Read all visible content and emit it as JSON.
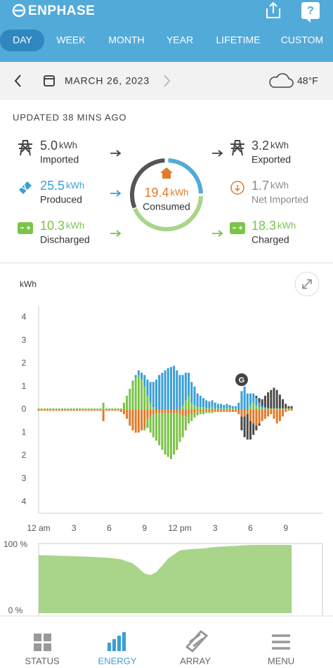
{
  "header": {
    "brand": "ENPHASE",
    "help": "?"
  },
  "tabs": [
    "DAY",
    "WEEK",
    "MONTH",
    "YEAR",
    "LIFETIME",
    "CUSTOM"
  ],
  "date_bar": {
    "date": "MARCH 26, 2023",
    "temperature": "48°F"
  },
  "summary": {
    "updated": "UPDATED 38 MINS AGO",
    "items": [
      {
        "value": "5.0",
        "unit": "kWh",
        "label": "Imported",
        "color": "#444444"
      },
      {
        "value": "25.5",
        "unit": "kWh",
        "label": "Produced",
        "color": "#3a9fd6"
      },
      {
        "value": "10.3",
        "unit": "kWh",
        "label": "Discharged",
        "color": "#7cc34a"
      },
      {
        "value": "3.2",
        "unit": "kWh",
        "label": "Exported",
        "color": "#444444"
      },
      {
        "value": "1.7",
        "unit": "kWh",
        "label": "Net Imported",
        "color": "#8a8a8a"
      },
      {
        "value": "18.3",
        "unit": "kWh",
        "label": "Charged",
        "color": "#7cc34a"
      }
    ],
    "center": {
      "value": "19.4",
      "unit": "kWh",
      "label": "Consumed",
      "color": "#e07b2a"
    }
  },
  "nav": [
    "STATUS",
    "ENERGY",
    "ARRAY",
    "MENU"
  ],
  "chart_data": [
    {
      "type": "bar",
      "stacked": true,
      "y_label": "kWh",
      "annotation": "G",
      "x": [
        0,
        0.25,
        0.5,
        0.75,
        1,
        1.25,
        1.5,
        1.75,
        2,
        2.25,
        2.5,
        2.75,
        3,
        3.25,
        3.5,
        3.75,
        4,
        4.25,
        4.5,
        4.75,
        5,
        5.25,
        5.5,
        5.75,
        6,
        6.25,
        6.5,
        6.75,
        7,
        7.25,
        7.5,
        7.75,
        8,
        8.25,
        8.5,
        8.75,
        9,
        9.25,
        9.5,
        9.75,
        10,
        10.25,
        10.5,
        10.75,
        11,
        11.25,
        11.5,
        11.75,
        12,
        12.25,
        12.5,
        12.75,
        13,
        13.25,
        13.5,
        13.75,
        14,
        14.25,
        14.5,
        14.75,
        15,
        15.25,
        15.5,
        15.75,
        16,
        16.25,
        16.5,
        16.75,
        17,
        17.25,
        17.5,
        17.75,
        18,
        18.25,
        18.5,
        18.75,
        19,
        19.25,
        19.5,
        19.75,
        20,
        20.25,
        20.5,
        20.75,
        21,
        21.25,
        21.5
      ],
      "series": [
        {
          "name": "Discharged",
          "color": "#7cc34a",
          "values": [
            0.05,
            0.05,
            0.05,
            0.05,
            0.05,
            0.05,
            0.05,
            0.05,
            0.05,
            0.05,
            0.05,
            0.05,
            0.05,
            0.05,
            0.05,
            0.05,
            0.05,
            0.05,
            0.05,
            0.05,
            0.05,
            0.05,
            0.3,
            0.05,
            0.05,
            0.05,
            0.05,
            0.05,
            0.05,
            0.3,
            0.6,
            0.9,
            1.2,
            1.4,
            1.5,
            1.3,
            1,
            0.6,
            0.3,
            0.1,
            0,
            0,
            0,
            0,
            0,
            0,
            0,
            0,
            0,
            0.2,
            0.4,
            0.6,
            0.3,
            0.2,
            0.1,
            0.1,
            0.1,
            0.05,
            0.05,
            0.1,
            0.05,
            0.05,
            0.05,
            0.05,
            0.05,
            0.05,
            0.05,
            0.05,
            0,
            0,
            0,
            0,
            0.2,
            0.3,
            0.2,
            0.1,
            0.05,
            0.05,
            0.05,
            0.05,
            0.05,
            0.05,
            0.05,
            0.05,
            0.05,
            0.05,
            0.05
          ]
        },
        {
          "name": "Produced",
          "color": "#3a9fd6",
          "values": [
            0,
            0,
            0,
            0,
            0,
            0,
            0,
            0,
            0,
            0,
            0,
            0,
            0,
            0,
            0,
            0,
            0,
            0,
            0,
            0,
            0,
            0,
            0,
            0,
            0,
            0,
            0,
            0,
            0,
            0,
            0,
            0,
            0.05,
            0.1,
            0.2,
            0.3,
            0.5,
            0.7,
            0.9,
            1.1,
            1.3,
            1.5,
            1.6,
            1.7,
            1.8,
            1.85,
            1.9,
            1.7,
            1.5,
            1.3,
            1.2,
            1,
            0.9,
            0.8,
            0.6,
            0.5,
            0.4,
            0.35,
            0.3,
            0.3,
            0.25,
            0.2,
            0.2,
            0.15,
            0.2,
            0.15,
            0.1,
            0.1,
            0.3,
            0.8,
            1,
            0.7,
            0.5,
            0.4,
            0.3,
            0.2,
            0.1,
            0.05,
            0,
            0,
            0,
            0,
            0,
            0,
            0,
            0,
            0
          ]
        },
        {
          "name": "Imported",
          "color": "#4a4a4a",
          "values": [
            0,
            0,
            0,
            0,
            0,
            0,
            0,
            0,
            0,
            0,
            0,
            0,
            0,
            0,
            0,
            0,
            0,
            0,
            0,
            0,
            0,
            0,
            0,
            0,
            0,
            0,
            0,
            0,
            0,
            0,
            0,
            0,
            0,
            0,
            0,
            0,
            0,
            0,
            0,
            0,
            0,
            0,
            0,
            0,
            0,
            0,
            0,
            0,
            0,
            0,
            0,
            0,
            0,
            0,
            0,
            0,
            0,
            0,
            0,
            0,
            0,
            0,
            0,
            0,
            0,
            0,
            0,
            0,
            0,
            0,
            0,
            0,
            0,
            0,
            0.1,
            0.2,
            0.3,
            0.5,
            0.7,
            0.8,
            0.9,
            0.8,
            0.6,
            0.4,
            0.2,
            0.1,
            0.1
          ]
        },
        {
          "name": "Consumed",
          "color": "#e07b2a",
          "values": [
            -0.05,
            -0.05,
            -0.05,
            -0.05,
            -0.05,
            -0.05,
            -0.05,
            -0.05,
            -0.05,
            -0.05,
            -0.05,
            -0.05,
            -0.05,
            -0.05,
            -0.05,
            -0.05,
            -0.05,
            -0.05,
            -0.05,
            -0.05,
            -0.05,
            -0.05,
            -0.5,
            -0.05,
            -0.05,
            -0.05,
            -0.05,
            -0.05,
            -0.1,
            -0.2,
            -0.4,
            -0.7,
            -0.9,
            -1,
            -1,
            -0.9,
            -0.8,
            -0.4,
            -0.3,
            -0.2,
            -0.15,
            -0.15,
            -0.15,
            -0.15,
            -0.15,
            -0.15,
            -0.15,
            -0.15,
            -0.2,
            -0.3,
            -0.3,
            -0.2,
            -0.2,
            -0.15,
            -0.1,
            -0.1,
            -0.1,
            -0.1,
            -0.1,
            -0.1,
            -0.1,
            -0.1,
            -0.1,
            -0.1,
            -0.1,
            -0.1,
            -0.1,
            -0.1,
            -0.2,
            -0.3,
            -0.3,
            -0.2,
            -0.5,
            -0.6,
            -0.7,
            -0.6,
            -0.5,
            -0.4,
            -0.3,
            -0.2,
            -0.4,
            -0.6,
            -0.5,
            -0.3,
            -0.1,
            -0.05,
            -0.05
          ]
        },
        {
          "name": "Charged",
          "color": "#7cc34a",
          "values": [
            0,
            0,
            0,
            0,
            0,
            0,
            0,
            0,
            0,
            0,
            0,
            0,
            0,
            0,
            0,
            0,
            0,
            0,
            0,
            0,
            0,
            0,
            0,
            0,
            0,
            0,
            0,
            0,
            0,
            0,
            0,
            0,
            0,
            0,
            0,
            0,
            -0.1,
            -0.4,
            -0.7,
            -1,
            -1.2,
            -1.4,
            -1.6,
            -1.8,
            -1.9,
            -2,
            -1.8,
            -1.6,
            -1.2,
            -0.9,
            -0.6,
            -0.4,
            -0.3,
            -0.2,
            -0.15,
            -0.1,
            -0.1,
            -0.05,
            -0.05,
            -0.05,
            0,
            0,
            0,
            0,
            0,
            0,
            0,
            0,
            0,
            0,
            0,
            0,
            0,
            0,
            0,
            0,
            0,
            0,
            0,
            0,
            0,
            0,
            0,
            0,
            0,
            0,
            0
          ]
        },
        {
          "name": "Exported",
          "color": "#4a4a4a",
          "values": [
            0,
            0,
            0,
            0,
            0,
            0,
            0,
            0,
            0,
            0,
            0,
            0,
            0,
            0,
            0,
            0,
            0,
            0,
            0,
            0,
            0,
            0,
            0,
            0,
            0,
            0,
            0,
            0,
            0,
            0,
            0,
            0,
            0,
            0,
            0,
            0,
            0,
            0,
            0,
            0,
            0,
            0,
            0,
            0,
            0,
            0,
            0,
            0,
            0,
            0,
            0,
            0,
            0,
            0,
            0,
            0,
            0,
            0,
            0,
            0,
            0,
            0,
            0,
            0,
            0,
            0,
            0,
            0,
            0,
            -0.6,
            -0.9,
            -1.1,
            -0.8,
            -0.5,
            -0.2,
            -0.1,
            0,
            0,
            0,
            0,
            0,
            0,
            0,
            0,
            0,
            0,
            0
          ]
        }
      ],
      "xlim": [
        0,
        24
      ],
      "ylim": [
        -4.5,
        4.5
      ],
      "xticks": [
        {
          "value": 0,
          "label": "12 am"
        },
        3,
        6,
        9,
        {
          "value": 12,
          "label": "12 pm"
        },
        {
          "value": 15,
          "label": "3"
        },
        {
          "value": 18,
          "label": "6"
        },
        {
          "value": 21,
          "label": "9"
        }
      ],
      "yticks": [
        4,
        3,
        2,
        1,
        0,
        {
          "value": -1,
          "label": "1"
        },
        {
          "value": -2,
          "label": "2"
        },
        {
          "value": -3,
          "label": "3"
        },
        {
          "value": -4,
          "label": "4"
        }
      ],
      "grid": false
    },
    {
      "type": "area",
      "color": "#a8d58a",
      "x": [
        0,
        2,
        4,
        6,
        7,
        8,
        8.5,
        9,
        9.5,
        10,
        10.5,
        11,
        12,
        13,
        14,
        15,
        16,
        17,
        18,
        19,
        20,
        21,
        21.5
      ],
      "values": [
        85,
        84,
        83,
        81,
        79,
        73,
        66,
        58,
        56,
        60,
        70,
        80,
        92,
        94,
        95,
        97,
        98,
        99,
        100,
        100,
        100,
        100,
        100
      ],
      "xlim": [
        0,
        24
      ],
      "ylim": [
        0,
        100
      ],
      "yticks": [
        {
          "value": 100,
          "label": "100 %"
        },
        {
          "value": 0,
          "label": "0 %"
        }
      ],
      "grid": false
    }
  ]
}
